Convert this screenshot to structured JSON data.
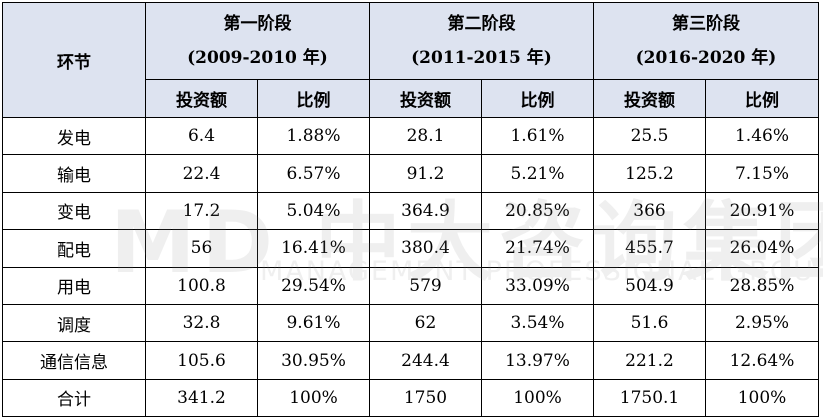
{
  "table": {
    "corner_header": "环节",
    "stages": [
      {
        "title": "第一阶段",
        "period": "(2009-2010 年)"
      },
      {
        "title": "第二阶段",
        "period": "(2011-2015 年)"
      },
      {
        "title": "第三阶段",
        "period": "(2016-2020 年)"
      }
    ],
    "sub_headers": {
      "investment": "投资额",
      "ratio": "比例"
    },
    "rows": [
      {
        "name": "发电",
        "cells": [
          "6.4",
          "1.88%",
          "28.1",
          "1.61%",
          "25.5",
          "1.46%"
        ]
      },
      {
        "name": "输电",
        "cells": [
          "22.4",
          "6.57%",
          "91.2",
          "5.21%",
          "125.2",
          "7.15%"
        ]
      },
      {
        "name": "变电",
        "cells": [
          "17.2",
          "5.04%",
          "364.9",
          "20.85%",
          "366",
          "20.91%"
        ]
      },
      {
        "name": "配电",
        "cells": [
          "56",
          "16.41%",
          "380.4",
          "21.74%",
          "455.7",
          "26.04%"
        ]
      },
      {
        "name": "用电",
        "cells": [
          "100.8",
          "29.54%",
          "579",
          "33.09%",
          "504.9",
          "28.85%"
        ]
      },
      {
        "name": "调度",
        "cells": [
          "32.8",
          "9.61%",
          "62",
          "3.54%",
          "51.6",
          "2.95%"
        ]
      },
      {
        "name": "通信信息",
        "cells": [
          "105.6",
          "30.95%",
          "244.4",
          "13.97%",
          "221.2",
          "12.64%"
        ]
      },
      {
        "name": "合计",
        "cells": [
          "341.2",
          "100%",
          "1750",
          "100%",
          "1750.1",
          "100%"
        ]
      }
    ]
  },
  "watermark": {
    "big_text": "MD 中大咨询集团",
    "small_text": "MANAGEMENT PROFESSIONAL GROUP"
  }
}
